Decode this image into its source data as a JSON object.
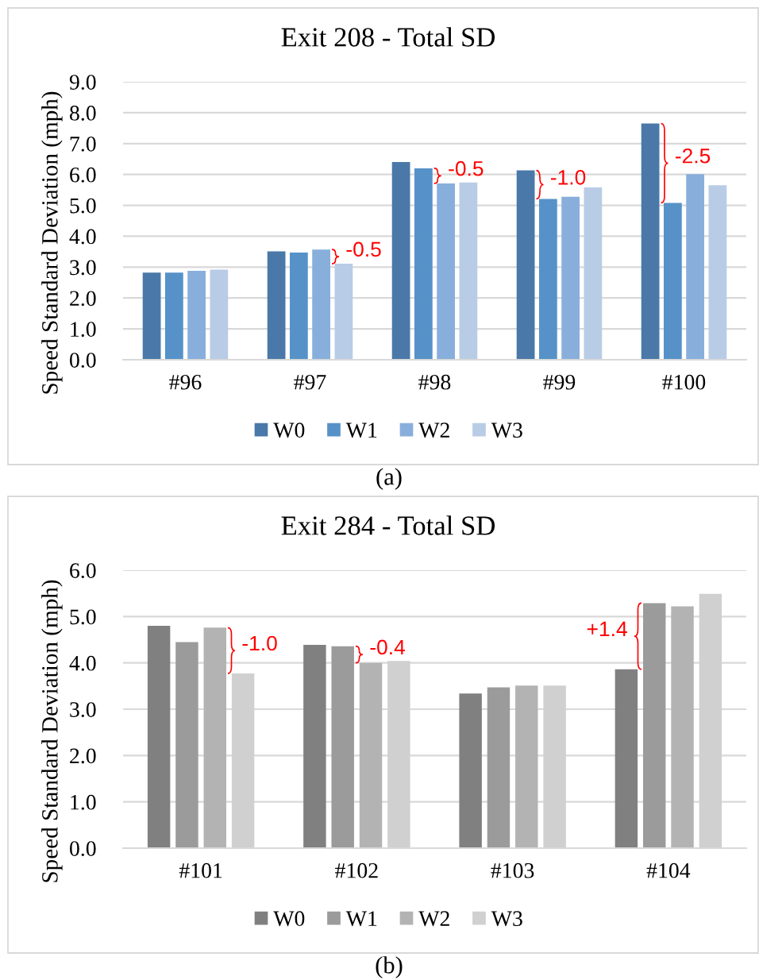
{
  "chart_data": [
    {
      "type": "bar",
      "title": "Exit 208 - Total SD",
      "ylabel": "Speed Standard Deviation (mph)",
      "categories": [
        "#96",
        "#97",
        "#98",
        "#99",
        "#100"
      ],
      "series": [
        {
          "name": "W0",
          "color": "#4a79a9",
          "values": [
            2.82,
            3.51,
            6.4,
            6.13,
            7.65
          ]
        },
        {
          "name": "W1",
          "color": "#5692c8",
          "values": [
            2.82,
            3.47,
            6.2,
            5.21,
            5.08
          ]
        },
        {
          "name": "W2",
          "color": "#88afdb",
          "values": [
            2.88,
            3.57,
            5.71,
            5.28,
            6.01
          ]
        },
        {
          "name": "W3",
          "color": "#b8cce6",
          "values": [
            2.92,
            3.11,
            5.74,
            5.58,
            5.65
          ]
        }
      ],
      "ylim": [
        0,
        9
      ],
      "yticks": [
        {
          "value": 0,
          "label": "0.0"
        },
        {
          "value": 1,
          "label": "1.0"
        },
        {
          "value": 2,
          "label": "2.0"
        },
        {
          "value": 3,
          "label": "3.0"
        },
        {
          "value": 4,
          "label": "4.0"
        },
        {
          "value": 5,
          "label": "5.0"
        },
        {
          "value": 6,
          "label": "6.0"
        },
        {
          "value": 7,
          "label": "7.0"
        },
        {
          "value": 8,
          "label": "8.0"
        },
        {
          "value": 9,
          "label": "9.0"
        }
      ],
      "grid": "y",
      "legend": "bottom",
      "annotations": [
        {
          "text": "-0.5",
          "x": "#97",
          "y": 3.57
        },
        {
          "text": "-0.5",
          "x": "#98",
          "y": 6.2
        },
        {
          "text": "-1.0",
          "x": "#99",
          "y": 5.21
        },
        {
          "text": "-2.5",
          "x": "#100",
          "y": 5.08
        },
        "(a)"
      ]
    },
    {
      "type": "bar",
      "title": "Exit 284 - Total SD",
      "ylabel": "Speed Standard Deviation (mph)",
      "categories": [
        "#101",
        "#102",
        "#103",
        "#104"
      ],
      "series": [
        {
          "name": "W0",
          "color": "#808080",
          "values": [
            4.8,
            4.39,
            3.34,
            3.86
          ]
        },
        {
          "name": "W1",
          "color": "#9b9b9b",
          "values": [
            4.45,
            4.36,
            3.47,
            5.29
          ]
        },
        {
          "name": "W2",
          "color": "#b3b3b3",
          "values": [
            4.76,
            4.0,
            3.51,
            5.22
          ]
        },
        {
          "name": "W3",
          "color": "#d0d0d0",
          "values": [
            3.77,
            4.04,
            3.51,
            5.49
          ]
        }
      ],
      "ylim": [
        0,
        6
      ],
      "yticks": [
        {
          "value": 0,
          "label": "0.0"
        },
        {
          "value": 1,
          "label": "1.0"
        },
        {
          "value": 2,
          "label": "2.0"
        },
        {
          "value": 3,
          "label": "3.0"
        },
        {
          "value": 4,
          "label": "4.0"
        },
        {
          "value": 5,
          "label": "5.0"
        },
        {
          "value": 6,
          "label": "6.0"
        }
      ],
      "grid": "y",
      "legend": "bottom",
      "annotations": [
        {
          "text": "-1.0",
          "x": "#101",
          "y": 4.76
        },
        {
          "text": "-0.4",
          "x": "#102",
          "y": 4.36
        },
        {
          "text": "+1.4",
          "x": "#104",
          "y": 5.29
        },
        "(b)"
      ]
    }
  ]
}
